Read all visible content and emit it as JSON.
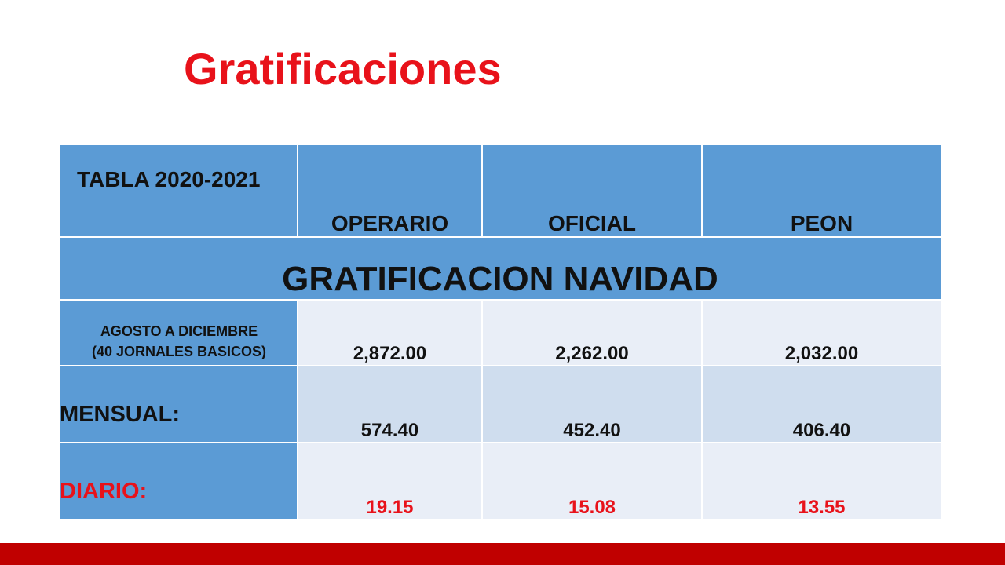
{
  "title": "Gratificaciones",
  "table": {
    "header": {
      "corner": "TABLA 2020-2021",
      "columns": [
        "OPERARIO",
        "OFICIAL",
        "PEON"
      ]
    },
    "section_title": "GRATIFICACION NAVIDAD",
    "rows": [
      {
        "label_line1": "AGOSTO A DICIEMBRE",
        "label_line2": "(40 JORNALES BASICOS)",
        "values": [
          "2,872.00",
          "2,262.00",
          "2,032.00"
        ]
      },
      {
        "label": "MENSUAL:",
        "values": [
          "574.40",
          "452.40",
          "406.40"
        ]
      },
      {
        "label": "DIARIO:",
        "values": [
          "19.15",
          "15.08",
          "13.55"
        ]
      }
    ]
  },
  "colors": {
    "accent_red": "#e8121a",
    "header_blue": "#5b9bd5",
    "footer_red": "#c00000"
  }
}
